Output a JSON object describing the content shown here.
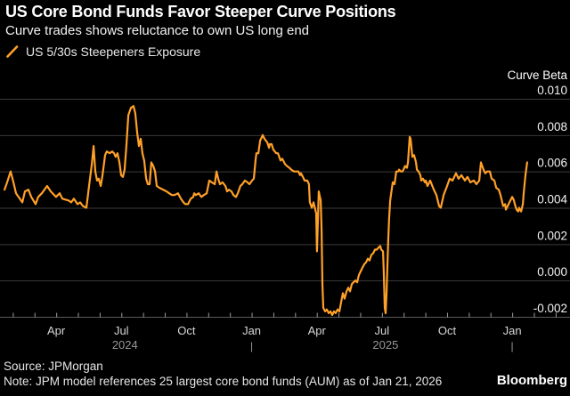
{
  "header": {
    "title": "US Core Bond Funds Favor Steeper Curve Positions",
    "subtitle": "Curve trades shows reluctance to own US long end"
  },
  "legend": {
    "marker_icon": "orange-slash-icon",
    "series_label": "US 5/30s Steepeners Exposure"
  },
  "footer": {
    "source": "Source: JPMorgan",
    "note": "Note: JPM model references 25 largest core bond funds (AUM) as of Jan 21, 2026",
    "brand": "Bloomberg"
  },
  "colors": {
    "background": "#000000",
    "line": "#FFA028",
    "grid": "#3A3A3A",
    "axis_line": "#5A5A5A",
    "tick": "#9B9B9B",
    "y_label": "#F2F2F2",
    "month_label": "#D6D6D6",
    "year_label": "#979797",
    "title_text": "#FFFFFF"
  },
  "chart_data": {
    "type": "line",
    "title": "US 5/30s Steepeners Exposure",
    "grid": true,
    "legend_position": "top-left",
    "y_axis": {
      "title": "Curve Beta",
      "side": "right",
      "tick_values": [
        0.01,
        0.008,
        0.006,
        0.004,
        0.002,
        0.0,
        -0.002
      ],
      "tick_labels": [
        "0.010",
        "0.008",
        "0.006",
        "0.004",
        "0.002",
        "0.000",
        "-0.002"
      ],
      "range": [
        -0.002,
        0.0112
      ]
    },
    "x_axis": {
      "unit": "months_since_2024-01-01",
      "range_months": [
        0.6,
        26.3
      ],
      "minor_ticks_months": [
        1,
        2,
        3,
        4,
        5,
        6,
        7,
        8,
        9,
        10,
        11,
        12,
        13,
        14,
        15,
        16,
        17,
        18,
        19,
        20,
        21,
        22,
        23,
        24,
        25,
        26
      ],
      "major_ticks": [
        {
          "t": 3,
          "label": "Apr"
        },
        {
          "t": 6,
          "label": "Jul"
        },
        {
          "t": 9,
          "label": "Oct"
        },
        {
          "t": 12,
          "label": "Jan"
        },
        {
          "t": 15,
          "label": "Apr"
        },
        {
          "t": 18,
          "label": "Jul"
        },
        {
          "t": 21,
          "label": "Oct"
        },
        {
          "t": 24,
          "label": "Jan"
        }
      ],
      "year_labels": [
        {
          "t": 6,
          "label": "2024"
        },
        {
          "t": 18,
          "label": "2025"
        }
      ],
      "year_boundary_markers_t": [
        12,
        24
      ]
    },
    "series": [
      {
        "name": "US 5/30s Steepeners Exposure",
        "color": "#FFA028",
        "points": [
          [
            0.62,
            0.005
          ],
          [
            0.74,
            0.0054
          ],
          [
            0.9,
            0.006
          ],
          [
            1.03,
            0.0054
          ],
          [
            1.15,
            0.0048
          ],
          [
            1.44,
            0.0043
          ],
          [
            1.56,
            0.0049
          ],
          [
            1.72,
            0.005
          ],
          [
            1.85,
            0.0046
          ],
          [
            2.05,
            0.0042
          ],
          [
            2.17,
            0.0046
          ],
          [
            2.34,
            0.0048
          ],
          [
            2.58,
            0.0052
          ],
          [
            2.75,
            0.0049
          ],
          [
            2.99,
            0.0046
          ],
          [
            3.16,
            0.0048
          ],
          [
            3.28,
            0.0045
          ],
          [
            3.57,
            0.0044
          ],
          [
            3.69,
            0.0043
          ],
          [
            3.81,
            0.0045
          ],
          [
            3.98,
            0.0042
          ],
          [
            4.1,
            0.0043
          ],
          [
            4.23,
            0.0041
          ],
          [
            4.39,
            0.004
          ],
          [
            4.51,
            0.0052
          ],
          [
            4.64,
            0.0064
          ],
          [
            4.72,
            0.0074
          ],
          [
            4.8,
            0.006
          ],
          [
            4.88,
            0.0055
          ],
          [
            4.96,
            0.0056
          ],
          [
            5.05,
            0.0052
          ],
          [
            5.13,
            0.0058
          ],
          [
            5.25,
            0.0069
          ],
          [
            5.33,
            0.0071
          ],
          [
            5.46,
            0.007
          ],
          [
            5.58,
            0.0071
          ],
          [
            5.66,
            0.007
          ],
          [
            5.74,
            0.0068
          ],
          [
            5.82,
            0.007
          ],
          [
            5.91,
            0.0065
          ],
          [
            5.99,
            0.0058
          ],
          [
            6.07,
            0.0057
          ],
          [
            6.15,
            0.0061
          ],
          [
            6.23,
            0.0074
          ],
          [
            6.32,
            0.0091
          ],
          [
            6.44,
            0.0095
          ],
          [
            6.56,
            0.0096
          ],
          [
            6.64,
            0.0092
          ],
          [
            6.73,
            0.0081
          ],
          [
            6.81,
            0.0074
          ],
          [
            6.89,
            0.0078
          ],
          [
            6.97,
            0.007
          ],
          [
            7.05,
            0.0066
          ],
          [
            7.14,
            0.0056
          ],
          [
            7.22,
            0.0053
          ],
          [
            7.3,
            0.0053
          ],
          [
            7.38,
            0.0065
          ],
          [
            7.47,
            0.0063
          ],
          [
            7.55,
            0.006
          ],
          [
            7.63,
            0.0052
          ],
          [
            7.75,
            0.0051
          ],
          [
            7.92,
            0.005
          ],
          [
            8.08,
            0.0049
          ],
          [
            8.2,
            0.0048
          ],
          [
            8.33,
            0.0047
          ],
          [
            8.45,
            0.0047
          ],
          [
            8.61,
            0.0048
          ],
          [
            8.74,
            0.0045
          ],
          [
            8.86,
            0.0043
          ],
          [
            8.94,
            0.0042
          ],
          [
            9.07,
            0.0042
          ],
          [
            9.19,
            0.0045
          ],
          [
            9.31,
            0.0046
          ],
          [
            9.35,
            0.0048
          ],
          [
            9.43,
            0.0047
          ],
          [
            9.56,
            0.0048
          ],
          [
            9.68,
            0.0046
          ],
          [
            9.8,
            0.0047
          ],
          [
            9.93,
            0.0048
          ],
          [
            10.05,
            0.0055
          ],
          [
            10.17,
            0.0054
          ],
          [
            10.3,
            0.0053
          ],
          [
            10.38,
            0.006
          ],
          [
            10.46,
            0.0056
          ],
          [
            10.54,
            0.0053
          ],
          [
            10.66,
            0.0054
          ],
          [
            10.79,
            0.0052
          ],
          [
            10.87,
            0.0049
          ],
          [
            10.95,
            0.005
          ],
          [
            11.07,
            0.0049
          ],
          [
            11.16,
            0.0047
          ],
          [
            11.28,
            0.0046
          ],
          [
            11.36,
            0.0048
          ],
          [
            11.48,
            0.0052
          ],
          [
            11.57,
            0.0053
          ],
          [
            11.69,
            0.0055
          ],
          [
            11.81,
            0.0054
          ],
          [
            11.9,
            0.0053
          ],
          [
            12.02,
            0.0055
          ],
          [
            12.1,
            0.0056
          ],
          [
            12.18,
            0.0066
          ],
          [
            12.22,
            0.007
          ],
          [
            12.31,
            0.007
          ],
          [
            12.39,
            0.0077
          ],
          [
            12.51,
            0.008
          ],
          [
            12.59,
            0.0078
          ],
          [
            12.72,
            0.0076
          ],
          [
            12.8,
            0.0073
          ],
          [
            12.84,
            0.0075
          ],
          [
            12.92,
            0.0075
          ],
          [
            13.0,
            0.0072
          ],
          [
            13.13,
            0.007
          ],
          [
            13.21,
            0.007
          ],
          [
            13.33,
            0.0066
          ],
          [
            13.41,
            0.0067
          ],
          [
            13.54,
            0.0064
          ],
          [
            13.62,
            0.0063
          ],
          [
            13.74,
            0.0062
          ],
          [
            13.82,
            0.0061
          ],
          [
            13.95,
            0.006
          ],
          [
            14.07,
            0.006
          ],
          [
            14.15,
            0.006
          ],
          [
            14.23,
            0.0058
          ],
          [
            14.27,
            0.0059
          ],
          [
            14.36,
            0.0057
          ],
          [
            14.44,
            0.0055
          ],
          [
            14.56,
            0.0055
          ],
          [
            14.64,
            0.0053
          ],
          [
            14.68,
            0.0043
          ],
          [
            14.77,
            0.004
          ],
          [
            14.85,
            0.0043
          ],
          [
            14.97,
            0.0037
          ],
          [
            15.01,
            0.0016
          ],
          [
            15.05,
            0.0032
          ],
          [
            15.09,
            0.0049
          ],
          [
            15.18,
            0.0044
          ],
          [
            15.22,
            0.0027
          ],
          [
            15.26,
            -0.0002
          ],
          [
            15.3,
            -0.0015
          ],
          [
            15.38,
            -0.0017
          ],
          [
            15.46,
            -0.0016
          ],
          [
            15.55,
            -0.0018
          ],
          [
            15.63,
            -0.0017
          ],
          [
            15.71,
            -0.0019
          ],
          [
            15.79,
            -0.0017
          ],
          [
            15.87,
            -0.0018
          ],
          [
            15.96,
            -0.0016
          ],
          [
            16.04,
            -0.0017
          ],
          [
            16.12,
            -0.0012
          ],
          [
            16.2,
            -0.0007
          ],
          [
            16.28,
            -0.001
          ],
          [
            16.37,
            -0.0006
          ],
          [
            16.45,
            -0.0004
          ],
          [
            16.53,
            -0.0006
          ],
          [
            16.61,
            -0.0002
          ],
          [
            16.69,
            -0.0001
          ],
          [
            16.78,
            0.0
          ],
          [
            16.86,
            -0.0001
          ],
          [
            16.94,
            0.0003
          ],
          [
            17.02,
            0.0005
          ],
          [
            17.1,
            0.0007
          ],
          [
            17.19,
            0.0009
          ],
          [
            17.27,
            0.001
          ],
          [
            17.35,
            0.0012
          ],
          [
            17.43,
            0.0011
          ],
          [
            17.51,
            0.0014
          ],
          [
            17.6,
            0.0015
          ],
          [
            17.68,
            0.0017
          ],
          [
            17.76,
            0.0017
          ],
          [
            17.84,
            0.0018
          ],
          [
            17.92,
            0.0019
          ],
          [
            17.97,
            0.0017
          ],
          [
            18.05,
            0.0016
          ],
          [
            18.09,
            0.0003
          ],
          [
            18.13,
            -0.0015
          ],
          [
            18.17,
            -0.0018
          ],
          [
            18.21,
            -0.0007
          ],
          [
            18.25,
            0.0007
          ],
          [
            18.29,
            0.0022
          ],
          [
            18.33,
            0.0034
          ],
          [
            18.38,
            0.0044
          ],
          [
            18.46,
            0.0051
          ],
          [
            18.5,
            0.0054
          ],
          [
            18.58,
            0.0053
          ],
          [
            18.66,
            0.006
          ],
          [
            18.75,
            0.006
          ],
          [
            18.79,
            0.0061
          ],
          [
            18.87,
            0.006
          ],
          [
            18.95,
            0.006
          ],
          [
            18.99,
            0.0061
          ],
          [
            19.07,
            0.0063
          ],
          [
            19.15,
            0.0062
          ],
          [
            19.2,
            0.0065
          ],
          [
            19.28,
            0.0079
          ],
          [
            19.32,
            0.0078
          ],
          [
            19.4,
            0.0068
          ],
          [
            19.48,
            0.0069
          ],
          [
            19.57,
            0.0065
          ],
          [
            19.61,
            0.0061
          ],
          [
            19.69,
            0.006
          ],
          [
            19.77,
            0.0058
          ],
          [
            19.81,
            0.0055
          ],
          [
            19.89,
            0.0056
          ],
          [
            19.98,
            0.0054
          ],
          [
            20.02,
            0.0055
          ],
          [
            20.1,
            0.0052
          ],
          [
            20.22,
            0.0055
          ],
          [
            20.39,
            0.005
          ],
          [
            20.51,
            0.0047
          ],
          [
            20.63,
            0.0041
          ],
          [
            20.71,
            0.004
          ],
          [
            20.84,
            0.0047
          ],
          [
            21.0,
            0.0052
          ],
          [
            21.12,
            0.0056
          ],
          [
            21.25,
            0.0055
          ],
          [
            21.41,
            0.0059
          ],
          [
            21.53,
            0.0056
          ],
          [
            21.66,
            0.0058
          ],
          [
            21.82,
            0.0055
          ],
          [
            21.94,
            0.0057
          ],
          [
            22.07,
            0.0054
          ],
          [
            22.23,
            0.0055
          ],
          [
            22.35,
            0.0053
          ],
          [
            22.48,
            0.0055
          ],
          [
            22.56,
            0.0065
          ],
          [
            22.68,
            0.0061
          ],
          [
            22.76,
            0.0059
          ],
          [
            22.85,
            0.006
          ],
          [
            22.97,
            0.006
          ],
          [
            23.05,
            0.0056
          ],
          [
            23.18,
            0.0055
          ],
          [
            23.26,
            0.0051
          ],
          [
            23.38,
            0.005
          ],
          [
            23.46,
            0.0047
          ],
          [
            23.58,
            0.0041
          ],
          [
            23.67,
            0.0042
          ],
          [
            23.71,
            0.0039
          ],
          [
            23.79,
            0.0041
          ],
          [
            23.87,
            0.0043
          ],
          [
            24.0,
            0.0046
          ],
          [
            24.08,
            0.0044
          ],
          [
            24.12,
            0.0042
          ],
          [
            24.2,
            0.0039
          ],
          [
            24.28,
            0.0038
          ],
          [
            24.32,
            0.004
          ],
          [
            24.41,
            0.0038
          ],
          [
            24.49,
            0.0042
          ],
          [
            24.53,
            0.0048
          ],
          [
            24.61,
            0.0058
          ],
          [
            24.69,
            0.0065
          ]
        ]
      }
    ]
  }
}
